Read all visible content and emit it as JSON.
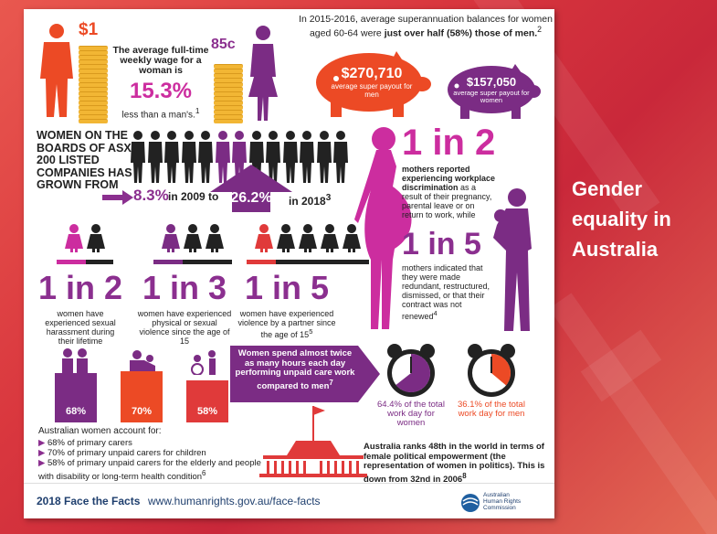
{
  "side_title": "Gender equality in Australia",
  "wage": {
    "male_amount": "$1",
    "female_amount": "85c",
    "intro": "The average full-time weekly wage for a woman is",
    "percent": "15.3%",
    "outro": "less than a man's.",
    "ref": "1"
  },
  "super": {
    "intro_a": "In 2015-2016, average superannuation balances for women aged 60-64 were ",
    "intro_b": "just over half (58%) those of men.",
    "ref": "2",
    "men_amount": "$270,710",
    "men_label": "average super payout for men",
    "women_amount": "$157,050",
    "women_label": "average super payout for women"
  },
  "boards": {
    "heading": "WOMEN ON THE BOARDS OF ASX 200 LISTED COMPANIES HAS GROWN FROM",
    "from_value": "8.3%",
    "from_year": "in 2009 to",
    "to_value": "26.2%",
    "to_year": "in 2018",
    "ref": "3"
  },
  "violence": [
    {
      "stat": "1 in 2",
      "label": "women have experienced sexual harassment during their lifetime"
    },
    {
      "stat": "1 in 3",
      "label": "women have experienced physical or sexual violence since the age of 15"
    },
    {
      "stat": "1 in 5",
      "label": "women have experienced violence by a partner since the age of 15",
      "ref": "5"
    }
  ],
  "mothers": {
    "stat1": "1 in 2",
    "text1_bold": "mothers reported experiencing workplace discrimination",
    "text1": " as a result of their pregnancy, parental leave or on return to work, while",
    "stat2": "1 in 5",
    "text2": "mothers indicated that they were made redundant, restructured, dismissed, or that their contract was not renewed",
    "ref": "4"
  },
  "carers": {
    "bars": [
      {
        "value": "68%",
        "level": 68,
        "color": "#7b2c84"
      },
      {
        "value": "70%",
        "level": 70,
        "color": "#ec4a25"
      },
      {
        "value": "58%",
        "level": 58,
        "color": "#e03a3a"
      }
    ],
    "intro": "Australian women account for:",
    "items": [
      "68% of primary carers",
      "70% of primary unpaid carers for children",
      "58% of primary unpaid carers for the elderly and people with disability or long-term health condition"
    ],
    "ref": "6"
  },
  "unpaid": {
    "text": "Women spend almost twice as many hours each day performing unpaid care work compared to men",
    "ref": "7",
    "women_value": "64.4% of the total work day for women",
    "women_fraction": 0.644,
    "men_value": "36.1% of the total work day for men",
    "men_fraction": 0.361
  },
  "politics": {
    "text": "Australia ranks 48th in the world in terms of female political empowerment (the representation of women in politics). This is down from 32nd in 2006",
    "ref": "8"
  },
  "footer": {
    "title": "2018 Face the Facts",
    "url": "www.humanrights.gov.au/face-facts",
    "org_line1": "Australian",
    "org_line2": "Human Rights",
    "org_line3": "Commission"
  },
  "colors": {
    "orange": "#ec4a25",
    "purple": "#7b2c84",
    "magenta": "#cc2d9f",
    "red": "#e03a3a"
  }
}
